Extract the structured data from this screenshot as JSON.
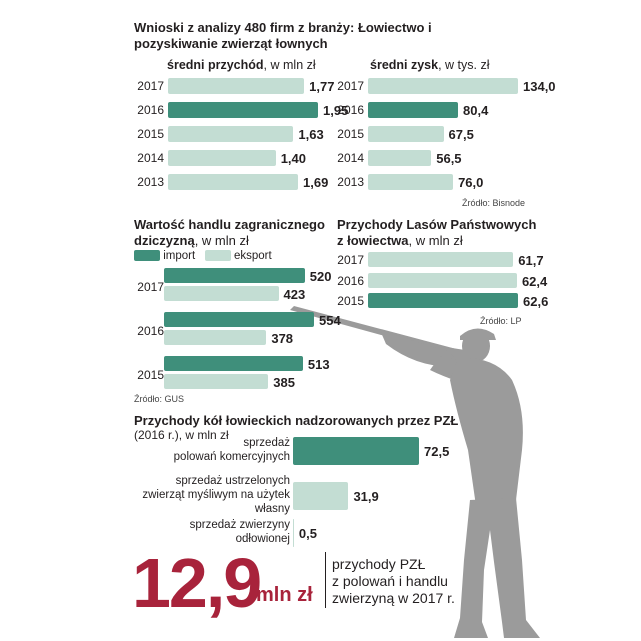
{
  "header": {
    "title": "Wnioski z analizy 480 firm z branży: Łowiectwo i pozyskiwanie zwierząt łownych"
  },
  "colors": {
    "dark": "#3f8f7b",
    "light": "#c3ddd3",
    "accent": "#a8233b",
    "silhouette": "#9b9b9b"
  },
  "chart_data": [
    {
      "type": "bar",
      "id": "revenue",
      "title": "średni przychód",
      "unit": "w mln zł",
      "categories": [
        "2017",
        "2016",
        "2015",
        "2014",
        "2013"
      ],
      "values": [
        1.77,
        1.95,
        1.63,
        1.4,
        1.69
      ],
      "labels": [
        "1,77",
        "1,95",
        "1,63",
        "1,40",
        "1,69"
      ],
      "highlight": "2016"
    },
    {
      "type": "bar",
      "id": "profit",
      "title": "średni zysk",
      "unit": "w tys. zł",
      "categories": [
        "2017",
        "2016",
        "2015",
        "2014",
        "2013"
      ],
      "values": [
        134.0,
        80.4,
        67.5,
        56.5,
        76.0
      ],
      "labels": [
        "134,0",
        "80,4",
        "67,5",
        "56,5",
        "76,0"
      ],
      "highlight": "2016",
      "source": "Źródło: Bisnode"
    },
    {
      "type": "bar",
      "id": "trade",
      "title_line1": "Wartość handlu zagranicznego",
      "title_line2": "dziczyzną",
      "unit": "w mln zł",
      "categories": [
        "2017",
        "2016",
        "2015"
      ],
      "series": [
        {
          "name": "import",
          "values": [
            520,
            554,
            513
          ],
          "labels": [
            "520",
            "554",
            "513"
          ]
        },
        {
          "name": "eksport",
          "values": [
            423,
            378,
            385
          ],
          "labels": [
            "423",
            "378",
            "385"
          ]
        }
      ],
      "source": "Źródło: GUS"
    },
    {
      "type": "bar",
      "id": "lp",
      "title_line1": "Przychody Lasów Państwowych",
      "title_line2": "z łowiectwa",
      "unit": "w mln zł",
      "categories": [
        "2017",
        "2016",
        "2015"
      ],
      "values": [
        61.7,
        62.4,
        62.6
      ],
      "labels": [
        "61,7",
        "62,4",
        "62,6"
      ],
      "highlight": "2015",
      "source": "Źródło: LP"
    },
    {
      "type": "bar",
      "id": "pzl",
      "title": "Przychody kół łowieckich nadzorowanych przez PZŁ",
      "subtitle": "(2016 r.), w mln zł",
      "categories": [
        [
          "sprzedaż",
          "polowań komercyjnych"
        ],
        [
          "sprzedaż ustrzelonych",
          "zwierząt myśliwym na użytek",
          "własny"
        ],
        [
          "sprzedaż zwierzyny",
          "odłowionej"
        ]
      ],
      "values": [
        72.5,
        31.9,
        0.5
      ],
      "labels": [
        "72,5",
        "31,9",
        "0,5"
      ]
    }
  ],
  "summary": {
    "value": "12,9",
    "unit": "mln zł",
    "line1": "przychody PZŁ",
    "line2": "z polowań i handlu",
    "line3": "zwierzyną w 2017 r."
  }
}
